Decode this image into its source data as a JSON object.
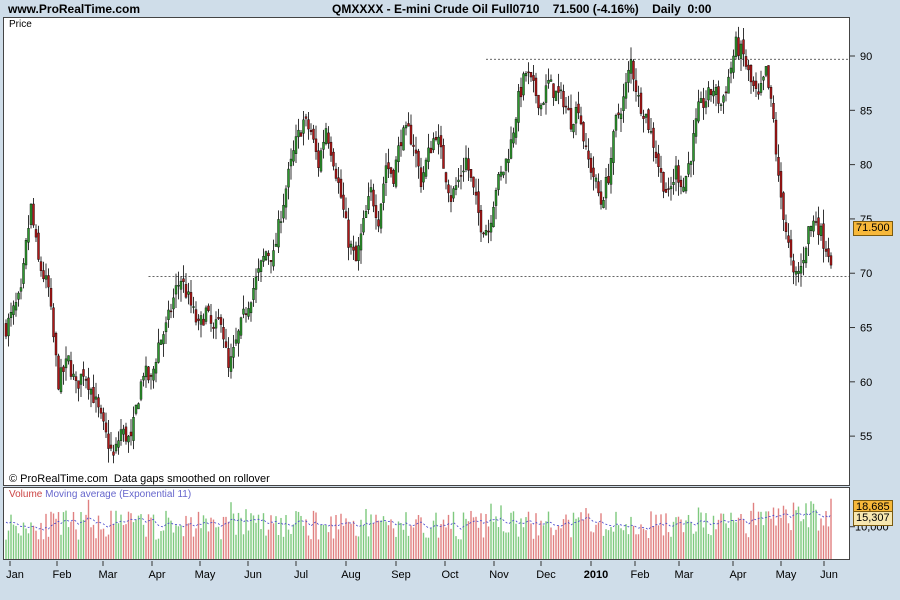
{
  "header": {
    "site": "www.ProRealTime.com",
    "instrument_line": "QMXXXX - E-mini Crude Oil Full0710    71.500 (-4.16%)    Daily  0:00"
  },
  "price_panel": {
    "label": "Price",
    "copyright": "© ProRealTime.com  Data gaps smoothed on rollover",
    "last_price_badge": "71.500"
  },
  "volume_panel": {
    "label_volume": "Volume",
    "label_ema": " Moving average (Exponential 11)",
    "last_volume_badge": "18,685",
    "ema_badge": "15,307"
  },
  "colors": {
    "background": "#cfdde9",
    "up_candle": "#2f9a2f",
    "down_candle": "#b01818",
    "vol_up": "#7ec97e",
    "vol_down": "#e08080",
    "ema_line": "#4444cc",
    "badge": "#f7b83a"
  },
  "chart_data": [
    {
      "type": "candlestick",
      "title": "QMXXXX - E-mini Crude Oil Full0710",
      "ylabel": "Price",
      "ylim": [
        50.5,
        93.5
      ],
      "y_ticks": [
        55,
        60,
        65,
        70,
        75,
        80,
        85,
        90
      ],
      "x_tick_labels": [
        "Jan",
        "Feb",
        "Mar",
        "Apr",
        "May",
        "Jun",
        "Jul",
        "Aug",
        "Sep",
        "Oct",
        "Nov",
        "Dec",
        "2010",
        "Feb",
        "Mar",
        "Apr",
        "May",
        "Jun"
      ],
      "horizontal_lines": [
        69.7,
        89.7
      ],
      "last_close": 71.5,
      "change_pct": -4.16,
      "close_path": {
        "x": [
          0,
          6,
          8,
          10,
          13,
          17,
          19,
          21,
          25,
          28,
          31,
          33,
          36,
          40,
          43,
          46,
          50,
          52,
          55,
          58,
          61,
          64,
          68,
          70,
          74,
          77,
          80,
          83,
          86,
          89,
          92,
          95,
          98,
          101,
          104,
          107,
          110,
          113,
          116,
          119,
          122,
          125,
          128,
          131,
          134,
          137,
          140,
          143,
          146,
          149,
          152,
          155,
          158,
          161,
          163,
          166,
          169,
          172,
          175,
          178,
          181,
          184,
          187,
          190,
          193,
          196,
          199,
          202,
          205,
          208,
          211,
          214,
          217,
          220,
          223,
          226,
          229,
          232,
          235,
          238,
          241,
          244,
          247,
          250,
          253,
          256,
          259,
          262,
          265,
          268,
          271,
          274,
          277,
          280,
          283,
          286,
          289,
          292,
          295,
          298,
          301,
          304,
          307,
          309
        ],
        "y": [
          65.0,
          68.0,
          72.5,
          76.0,
          71.0,
          68.5,
          64.0,
          60.0,
          62.0,
          59.5,
          61.0,
          60.0,
          58.0,
          55.0,
          53.0,
          55.5,
          54.5,
          57.5,
          61.0,
          60.0,
          63.5,
          65.0,
          68.5,
          69.5,
          67.0,
          65.0,
          66.5,
          64.5,
          66.0,
          61.0,
          63.5,
          66.0,
          68.0,
          70.0,
          72.0,
          71.5,
          75.5,
          79.0,
          82.0,
          84.0,
          83.0,
          80.0,
          83.5,
          80.5,
          77.0,
          73.0,
          71.0,
          74.5,
          77.5,
          75.0,
          80.0,
          79.0,
          82.5,
          83.0,
          82.0,
          78.5,
          81.0,
          83.0,
          80.0,
          77.0,
          78.5,
          80.5,
          77.5,
          74.5,
          74.0,
          78.0,
          79.5,
          82.0,
          86.0,
          88.5,
          87.0,
          85.5,
          87.5,
          86.5,
          86.0,
          84.0,
          85.5,
          81.0,
          79.0,
          76.5,
          79.0,
          84.0,
          86.0,
          89.5,
          86.0,
          84.5,
          82.0,
          79.0,
          77.0,
          79.5,
          78.0,
          81.0,
          85.0,
          86.0,
          87.0,
          85.5,
          88.0,
          91.0,
          90.0,
          87.5,
          86.0,
          88.5,
          84.0,
          78.5
        ]
      },
      "close_path_2": {
        "x": [
          309,
          312,
          315,
          318,
          321,
          324,
          327,
          330
        ],
        "y": [
          78.5,
          74.0,
          69.5,
          70.5,
          74.0,
          75.0,
          73.0,
          71.5
        ]
      }
    },
    {
      "type": "bar",
      "title": "Volume Moving average (Exponential 11)",
      "ylim": [
        0,
        22000
      ],
      "y_ticks": [
        10000
      ],
      "series": [
        {
          "name": "Volume"
        },
        {
          "name": "Moving average (Exponential 11)"
        }
      ],
      "last_volume": 18685,
      "last_ema": 15307
    }
  ]
}
